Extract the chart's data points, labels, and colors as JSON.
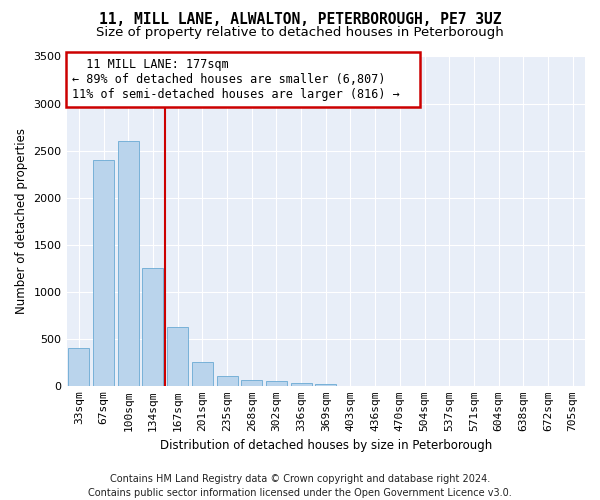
{
  "title1": "11, MILL LANE, ALWALTON, PETERBOROUGH, PE7 3UZ",
  "title2": "Size of property relative to detached houses in Peterborough",
  "xlabel": "Distribution of detached houses by size in Peterborough",
  "ylabel": "Number of detached properties",
  "footer1": "Contains HM Land Registry data © Crown copyright and database right 2024.",
  "footer2": "Contains public sector information licensed under the Open Government Licence v3.0.",
  "annotation_line1": "11 MILL LANE: 177sqm",
  "annotation_line2": "← 89% of detached houses are smaller (6,807)",
  "annotation_line3": "11% of semi-detached houses are larger (816) →",
  "bar_color": "#bad4ec",
  "bar_edge_color": "#6aaad4",
  "vline_color": "#cc0000",
  "annotation_box_edge": "#cc0000",
  "background_color": "#e8eef8",
  "categories": [
    "33sqm",
    "67sqm",
    "100sqm",
    "134sqm",
    "167sqm",
    "201sqm",
    "235sqm",
    "268sqm",
    "302sqm",
    "336sqm",
    "369sqm",
    "403sqm",
    "436sqm",
    "470sqm",
    "504sqm",
    "537sqm",
    "571sqm",
    "604sqm",
    "638sqm",
    "672sqm",
    "705sqm"
  ],
  "values": [
    400,
    2400,
    2600,
    1250,
    630,
    250,
    100,
    65,
    55,
    35,
    20,
    0,
    0,
    0,
    0,
    0,
    0,
    0,
    0,
    0,
    0
  ],
  "ylim": [
    0,
    3500
  ],
  "yticks": [
    0,
    500,
    1000,
    1500,
    2000,
    2500,
    3000,
    3500
  ],
  "vline_x_index": 3.5,
  "title1_fontsize": 10.5,
  "title2_fontsize": 9.5,
  "annotation_fontsize": 8.5,
  "xlabel_fontsize": 8.5,
  "ylabel_fontsize": 8.5,
  "tick_fontsize": 8,
  "footer_fontsize": 7
}
